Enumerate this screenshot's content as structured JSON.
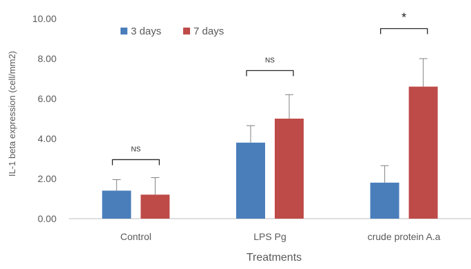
{
  "chart_data": {
    "type": "bar",
    "title": "",
    "xlabel": "Treatments",
    "ylabel": "IL-1 beta expression (cell/mm2)",
    "categories": [
      "Control",
      "LPS Pg",
      "crude protein A.a"
    ],
    "ylim": [
      0,
      10
    ],
    "yticks": [
      "0.00",
      "2.00",
      "4.00",
      "6.00",
      "8.00",
      "10.00"
    ],
    "grid": false,
    "legend_position": "top-left",
    "series": [
      {
        "name": "3 days",
        "color": "#4a7ebb",
        "values": [
          1.4,
          3.8,
          1.8
        ],
        "errors": [
          0.55,
          0.85,
          0.85
        ]
      },
      {
        "name": "7 days",
        "color": "#be4b48",
        "values": [
          1.2,
          5.0,
          6.6
        ],
        "errors": [
          0.85,
          1.2,
          1.4
        ]
      }
    ],
    "annotations": [
      {
        "category": 0,
        "text": "NS",
        "y": 2.95
      },
      {
        "category": 1,
        "text": "NS",
        "y": 7.4
      },
      {
        "category": 2,
        "text": "*",
        "y": 9.5
      }
    ]
  }
}
